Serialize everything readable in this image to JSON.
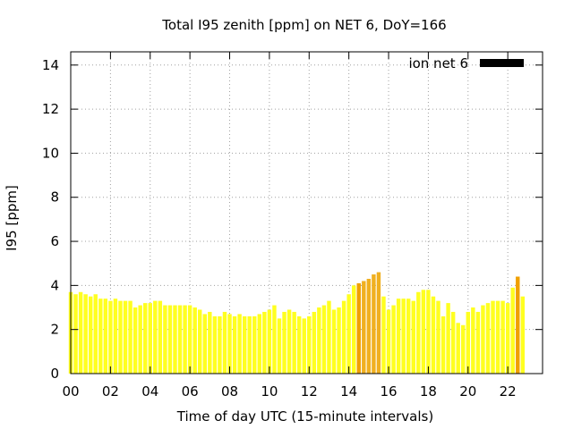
{
  "chart_data": {
    "type": "bar",
    "title": "Total I95 zenith [ppm] on NET 6, DoY=166",
    "xlabel": "Time of day UTC (15-minute intervals)",
    "ylabel": "I95 [ppm]",
    "xlim": [
      0,
      23.75
    ],
    "ylim": [
      0,
      14.6
    ],
    "x_ticks": [
      0,
      2,
      4,
      6,
      8,
      10,
      12,
      14,
      16,
      18,
      20,
      22
    ],
    "x_tick_labels": [
      "00",
      "02",
      "04",
      "06",
      "08",
      "10",
      "12",
      "14",
      "16",
      "18",
      "20",
      "22"
    ],
    "y_ticks": [
      0,
      2,
      4,
      6,
      8,
      10,
      12,
      14
    ],
    "y_tick_labels": [
      "0",
      "2",
      "4",
      "6",
      "8",
      "10",
      "12",
      "14"
    ],
    "grid": true,
    "legend": {
      "label": "ion net 6",
      "position": "top-right",
      "swatch_color": "#000000"
    },
    "bar_interval_hours": 0.25,
    "colors": {
      "normal": "#ffff20",
      "elevated": "#f0b020",
      "high": "#f0a000"
    },
    "series": [
      {
        "values": [
          3.7,
          3.6,
          3.7,
          3.6,
          3.5,
          3.6,
          3.4,
          3.4,
          3.3,
          3.4,
          3.3,
          3.3,
          3.3,
          3.0,
          3.1,
          3.2,
          3.2,
          3.3,
          3.3,
          3.1,
          3.1,
          3.1,
          3.1,
          3.1,
          3.1,
          3.0,
          2.9,
          2.7,
          2.8,
          2.6,
          2.6,
          2.8,
          2.7,
          2.6,
          2.7,
          2.6,
          2.6,
          2.6,
          2.7,
          2.8,
          2.9,
          3.1,
          2.5,
          2.8,
          2.9,
          2.8,
          2.6,
          2.5,
          2.6,
          2.8,
          3.0,
          3.1,
          3.3,
          2.9,
          3.0,
          3.3,
          3.6,
          4.0,
          4.1,
          4.2,
          4.3,
          4.5,
          4.6,
          3.5,
          2.9,
          3.1,
          3.4,
          3.4,
          3.4,
          3.3,
          3.7,
          3.8,
          3.8,
          3.5,
          3.3,
          2.6,
          3.2,
          2.8,
          2.3,
          2.2,
          2.8,
          3.0,
          2.8,
          3.1,
          3.2,
          3.3,
          3.3,
          3.3,
          3.2,
          3.9,
          4.4,
          3.5
        ],
        "colors": [
          "normal",
          "normal",
          "normal",
          "normal",
          "normal",
          "normal",
          "normal",
          "normal",
          "normal",
          "normal",
          "normal",
          "normal",
          "normal",
          "normal",
          "normal",
          "normal",
          "normal",
          "normal",
          "normal",
          "normal",
          "normal",
          "normal",
          "normal",
          "normal",
          "normal",
          "normal",
          "normal",
          "normal",
          "normal",
          "normal",
          "normal",
          "normal",
          "normal",
          "normal",
          "normal",
          "normal",
          "normal",
          "normal",
          "normal",
          "normal",
          "normal",
          "normal",
          "normal",
          "normal",
          "normal",
          "normal",
          "normal",
          "normal",
          "normal",
          "normal",
          "normal",
          "normal",
          "normal",
          "normal",
          "normal",
          "normal",
          "normal",
          "normal",
          "high",
          "elevated",
          "elevated",
          "elevated",
          "elevated",
          "normal",
          "normal",
          "normal",
          "normal",
          "normal",
          "normal",
          "normal",
          "normal",
          "normal",
          "normal",
          "normal",
          "normal",
          "normal",
          "normal",
          "normal",
          "normal",
          "normal",
          "normal",
          "normal",
          "normal",
          "normal",
          "normal",
          "normal",
          "normal",
          "normal",
          "normal",
          "normal",
          "high",
          "normal"
        ]
      }
    ]
  }
}
